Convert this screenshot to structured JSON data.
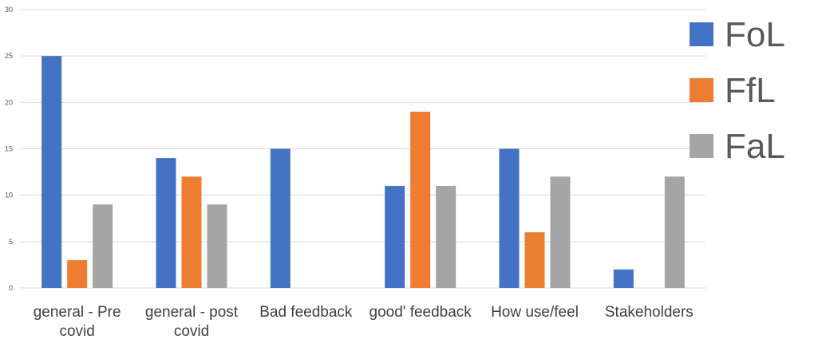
{
  "chart_data": {
    "type": "bar",
    "title": "",
    "xlabel": "",
    "ylabel": "",
    "ylim": [
      0,
      30
    ],
    "yticks": [
      0,
      5,
      10,
      15,
      20,
      25,
      30
    ],
    "grid": true,
    "legend_position": "right",
    "categories": [
      [
        "general - Pre",
        "covid"
      ],
      [
        "general - post",
        "covid"
      ],
      [
        "Bad feedback"
      ],
      [
        "good' feedback"
      ],
      [
        "How use/feel"
      ],
      [
        "Stakeholders"
      ]
    ],
    "series": [
      {
        "name": "FoL",
        "color": "#4472C4",
        "values": [
          25,
          14,
          15,
          11,
          15,
          2
        ]
      },
      {
        "name": "FfL",
        "color": "#ED7D31",
        "values": [
          3,
          12,
          0,
          19,
          6,
          0
        ]
      },
      {
        "name": "FaL",
        "color": "#A5A5A5",
        "values": [
          9,
          9,
          0,
          11,
          12,
          12
        ]
      }
    ]
  }
}
